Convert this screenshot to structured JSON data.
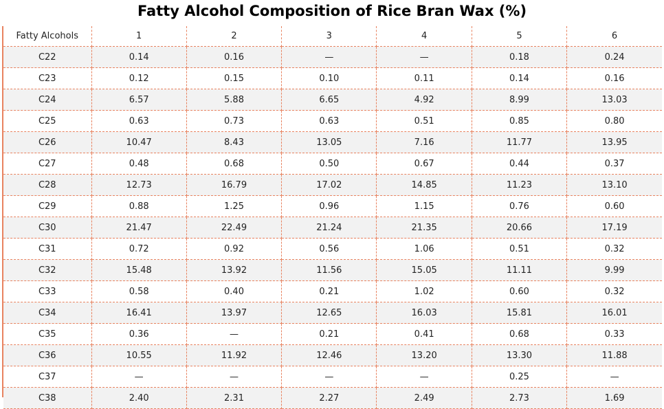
{
  "chart_data": {
    "type": "table",
    "title": "Fatty Alcohol Composition of Rice Bran Wax (%)",
    "columns": [
      "Fatty Alcohols",
      "1",
      "2",
      "3",
      "4",
      "5",
      "6"
    ],
    "rows": [
      [
        "C22",
        "0.14",
        "0.16",
        "—",
        "—",
        "0.18",
        "0.24"
      ],
      [
        "C23",
        "0.12",
        "0.15",
        "0.10",
        "0.11",
        "0.14",
        "0.16"
      ],
      [
        "C24",
        "6.57",
        "5.88",
        "6.65",
        "4.92",
        "8.99",
        "13.03"
      ],
      [
        "C25",
        "0.63",
        "0.73",
        "0.63",
        "0.51",
        "0.85",
        "0.80"
      ],
      [
        "C26",
        "10.47",
        "8.43",
        "13.05",
        "7.16",
        "11.77",
        "13.95"
      ],
      [
        "C27",
        "0.48",
        "0.68",
        "0.50",
        "0.67",
        "0.44",
        "0.37"
      ],
      [
        "C28",
        "12.73",
        "16.79",
        "17.02",
        "14.85",
        "11.23",
        "13.10"
      ],
      [
        "C29",
        "0.88",
        "1.25",
        "0.96",
        "1.15",
        "0.76",
        "0.60"
      ],
      [
        "C30",
        "21.47",
        "22.49",
        "21.24",
        "21.35",
        "20.66",
        "17.19"
      ],
      [
        "C31",
        "0.72",
        "0.92",
        "0.56",
        "1.06",
        "0.51",
        "0.32"
      ],
      [
        "C32",
        "15.48",
        "13.92",
        "11.56",
        "15.05",
        "11.11",
        "9.99"
      ],
      [
        "C33",
        "0.58",
        "0.40",
        "0.21",
        "1.02",
        "0.60",
        "0.32"
      ],
      [
        "C34",
        "16.41",
        "13.97",
        "12.65",
        "16.03",
        "15.81",
        "16.01"
      ],
      [
        "C35",
        "0.36",
        "—",
        "0.21",
        "0.41",
        "0.68",
        "0.33"
      ],
      [
        "C36",
        "10.55",
        "11.92",
        "12.46",
        "13.20",
        "13.30",
        "11.88"
      ],
      [
        "C37",
        "—",
        "—",
        "—",
        "—",
        "0.25",
        "—"
      ],
      [
        "C38",
        "2.40",
        "2.31",
        "2.27",
        "2.49",
        "2.73",
        "1.69"
      ]
    ]
  },
  "colors": {
    "border": "#e8825f",
    "stripe": "#f2f2f2"
  }
}
